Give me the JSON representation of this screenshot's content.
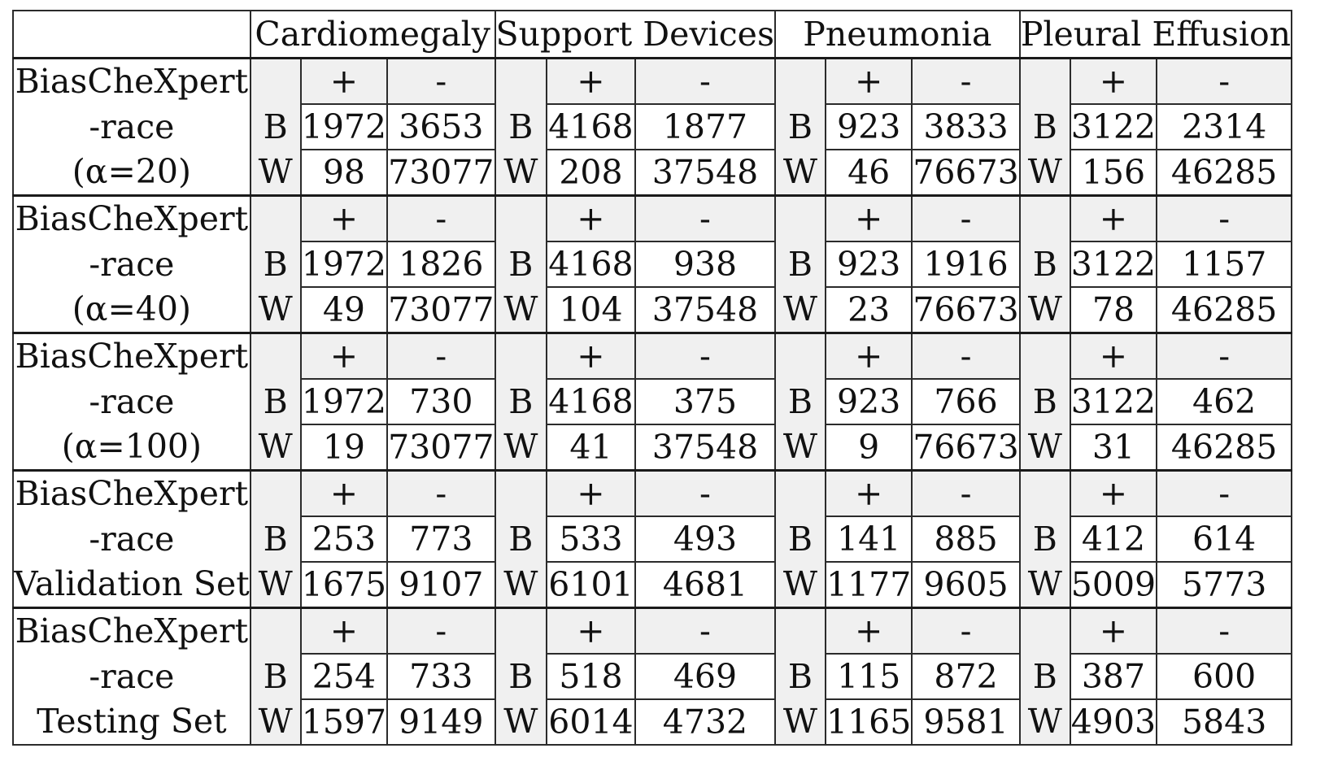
{
  "header": {
    "corner": "",
    "diseases": [
      "Cardiomegaly",
      "Support Devices",
      "Pneumonia",
      "Pleural Effusion"
    ]
  },
  "labels": {
    "pos": "+",
    "neg": "-",
    "black": "B",
    "white": "W"
  },
  "groups": [
    {
      "line1": "BiasCheXpert",
      "line2": "-race",
      "line3": "(α=20)",
      "cells": [
        {
          "b_pos": "1972",
          "b_neg": "3653",
          "w_pos": "98",
          "w_neg": "73077"
        },
        {
          "b_pos": "4168",
          "b_neg": "1877",
          "w_pos": "208",
          "w_neg": "37548"
        },
        {
          "b_pos": "923",
          "b_neg": "3833",
          "w_pos": "46",
          "w_neg": "76673"
        },
        {
          "b_pos": "3122",
          "b_neg": "2314",
          "w_pos": "156",
          "w_neg": "46285"
        }
      ]
    },
    {
      "line1": "BiasCheXpert",
      "line2": "-race",
      "line3": "(α=40)",
      "cells": [
        {
          "b_pos": "1972",
          "b_neg": "1826",
          "w_pos": "49",
          "w_neg": "73077"
        },
        {
          "b_pos": "4168",
          "b_neg": "938",
          "w_pos": "104",
          "w_neg": "37548"
        },
        {
          "b_pos": "923",
          "b_neg": "1916",
          "w_pos": "23",
          "w_neg": "76673"
        },
        {
          "b_pos": "3122",
          "b_neg": "1157",
          "w_pos": "78",
          "w_neg": "46285"
        }
      ]
    },
    {
      "line1": "BiasCheXpert",
      "line2": "-race",
      "line3": "(α=100)",
      "cells": [
        {
          "b_pos": "1972",
          "b_neg": "730",
          "w_pos": "19",
          "w_neg": "73077"
        },
        {
          "b_pos": "4168",
          "b_neg": "375",
          "w_pos": "41",
          "w_neg": "37548"
        },
        {
          "b_pos": "923",
          "b_neg": "766",
          "w_pos": "9",
          "w_neg": "76673"
        },
        {
          "b_pos": "3122",
          "b_neg": "462",
          "w_pos": "31",
          "w_neg": "46285"
        }
      ]
    },
    {
      "line1": "BiasCheXpert",
      "line2": "-race",
      "line3": "Validation Set",
      "cells": [
        {
          "b_pos": "253",
          "b_neg": "773",
          "w_pos": "1675",
          "w_neg": "9107"
        },
        {
          "b_pos": "533",
          "b_neg": "493",
          "w_pos": "6101",
          "w_neg": "4681"
        },
        {
          "b_pos": "141",
          "b_neg": "885",
          "w_pos": "1177",
          "w_neg": "9605"
        },
        {
          "b_pos": "412",
          "b_neg": "614",
          "w_pos": "5009",
          "w_neg": "5773"
        }
      ]
    },
    {
      "line1": "BiasCheXpert",
      "line2": "-race",
      "line3": "Testing Set",
      "cells": [
        {
          "b_pos": "254",
          "b_neg": "733",
          "w_pos": "1597",
          "w_neg": "9149"
        },
        {
          "b_pos": "518",
          "b_neg": "469",
          "w_pos": "6014",
          "w_neg": "4732"
        },
        {
          "b_pos": "115",
          "b_neg": "872",
          "w_pos": "1165",
          "w_neg": "9581"
        },
        {
          "b_pos": "387",
          "b_neg": "600",
          "w_pos": "4903",
          "w_neg": "5843"
        }
      ]
    }
  ]
}
